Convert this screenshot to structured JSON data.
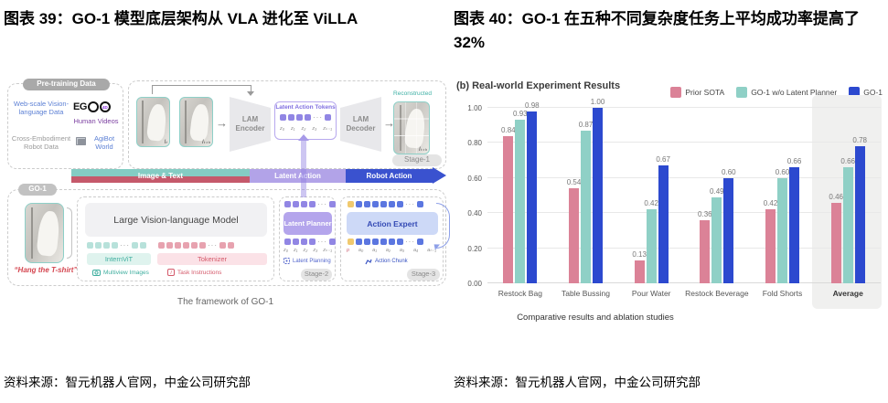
{
  "ui": {
    "ellipsis": "···",
    "arrow_right": "→"
  },
  "figure39": {
    "title": "图表 39：GO-1 模型底层架构从 VLA 进化至 ViLLA",
    "source": "资料来源：智元机器人官网，中金公司研究部",
    "diagram": {
      "caption": "The framework of GO-1",
      "pretraining": {
        "label": "Pre-training Data",
        "web_scale": "Web-scale Vision-language Data",
        "ego": "EG",
        "ego_4d": "4D",
        "human_videos": "Human Videos",
        "cross_embodiment": "Cross-Embodiment Robot Data",
        "agibot": "AgiBot World"
      },
      "stage1": {
        "frame_t": "Iₜ",
        "frame_th": "Iₜ₊ₕ",
        "lam_encoder": "LAM Encoder",
        "lam_decoder": "LAM Decoder",
        "latent_tokens_title": "Latent Action Tokens",
        "z_labels": [
          "z₀",
          "z₁",
          "z₂",
          "z₃",
          "zₖ₋₁"
        ],
        "reconstructed": "Reconstructed",
        "stage": "Stage-1"
      },
      "flow": {
        "image_text": "Image & Text",
        "latent_action": "Latent Action",
        "robot_action": "Robot Action"
      },
      "go1": {
        "pill": "GO-1",
        "task": "“Hang the T-shirt”",
        "lvlm": "Large Vision-language Model",
        "internvit": "InternViT",
        "tokenizer": "Tokenizer",
        "multiview": "Multiview Images",
        "task_instructions": "Task Instructions",
        "latent_planner": "Latent Planner",
        "planner_z_labels": [
          "z₀",
          "z₁",
          "z₂",
          "z₃",
          "zₖ₋₁"
        ],
        "latent_planning": "Latent Planning",
        "stage2": "Stage-2",
        "action_expert": "Action Expert",
        "action_labels": [
          "p",
          "a₀",
          "a₁",
          "a₂",
          "a₃",
          "a₄",
          "aₕ₋₁"
        ],
        "action_chunk": "Action Chunk",
        "stage3": "Stage-3"
      }
    }
  },
  "figure40": {
    "title": "图表 40：GO-1 在五种不同复杂度任务上平均成功率提高了 32%",
    "source": "资料来源：智元机器人官网，中金公司研究部",
    "chart_data": {
      "type": "bar",
      "title": "(b) Real-world Experiment Results",
      "categories": [
        "Restock Bag",
        "Table Bussing",
        "Pour Water",
        "Restock Beverage",
        "Fold Shorts",
        "Average"
      ],
      "series": [
        {
          "name": "Prior SOTA",
          "color": "#db8297",
          "values": [
            0.84,
            0.54,
            0.13,
            0.36,
            0.42,
            0.46
          ]
        },
        {
          "name": "GO-1 w/o Latent Planner",
          "color": "#8fd0c6",
          "values": [
            0.93,
            0.87,
            0.42,
            0.49,
            0.6,
            0.66
          ]
        },
        {
          "name": "GO-1",
          "color": "#2c49cf",
          "values": [
            0.98,
            1.0,
            0.67,
            0.6,
            0.66,
            0.78
          ]
        }
      ],
      "ylim": [
        0,
        1.0
      ],
      "yticks": [
        "1.00",
        "0.80",
        "0.60",
        "0.40",
        "0.20",
        "0.00"
      ],
      "grid": true,
      "legend_position": "top-right",
      "highlighted_category": "Average",
      "xlabel": "Comparative results and ablation studies"
    }
  }
}
